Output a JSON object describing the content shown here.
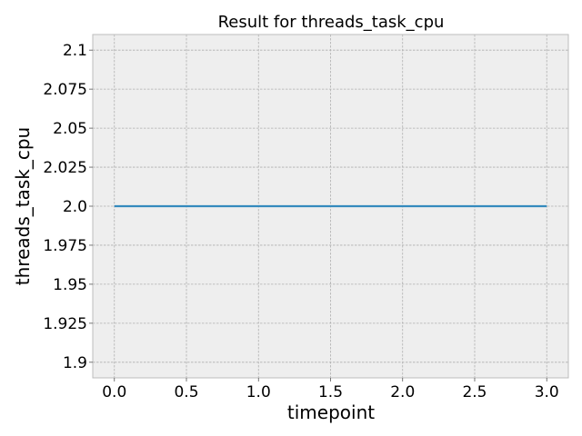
{
  "chart_data": {
    "type": "line",
    "title": "Result for threads_task_cpu",
    "xlabel": "timepoint",
    "ylabel": "threads_task_cpu",
    "xlim": [
      -0.15,
      3.15
    ],
    "ylim": [
      1.89,
      2.11
    ],
    "x_ticks": [
      0.0,
      0.5,
      1.0,
      1.5,
      2.0,
      2.5,
      3.0
    ],
    "x_tick_labels": [
      "0.0",
      "0.5",
      "1.0",
      "1.5",
      "2.0",
      "2.5",
      "3.0"
    ],
    "y_ticks": [
      1.9,
      1.925,
      1.95,
      1.975,
      2.0,
      2.025,
      2.05,
      2.075,
      2.1
    ],
    "y_tick_labels": [
      "1.9",
      "1.925",
      "1.95",
      "1.975",
      "2.0",
      "2.025",
      "2.05",
      "2.075",
      "2.1"
    ],
    "grid": true,
    "legend": "none",
    "background_color": "#eeeeee",
    "series": [
      {
        "color": "#348abd",
        "x": [
          0,
          1,
          2,
          3
        ],
        "y": [
          2.0,
          2.0,
          2.0,
          2.0
        ]
      }
    ]
  }
}
